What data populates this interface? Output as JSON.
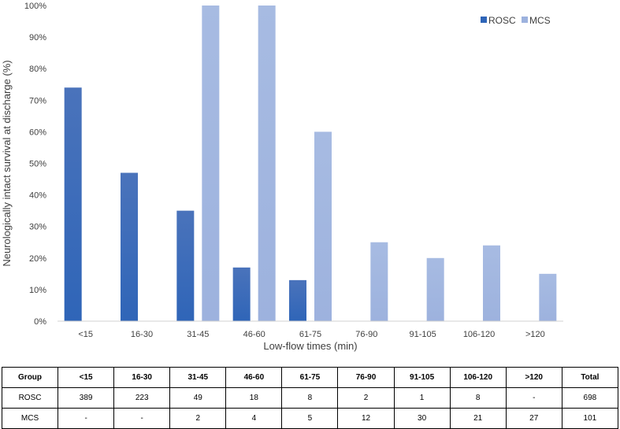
{
  "chart_data": {
    "type": "bar",
    "categories": [
      "<15",
      "16-30",
      "31-45",
      "46-60",
      "61-75",
      "76-90",
      "91-105",
      "106-120",
      ">120"
    ],
    "series": [
      {
        "name": "ROSC",
        "color": "#2f65b8",
        "values": [
          74,
          47,
          35,
          17,
          13,
          0,
          0,
          0,
          0
        ]
      },
      {
        "name": "MCS",
        "color": "#9db2de",
        "values": [
          0,
          0,
          100,
          100,
          60,
          25,
          20,
          24,
          15
        ]
      }
    ],
    "xlabel": "Low-flow times (min)",
    "ylabel": "Neurologically intact survival at discharge (%)",
    "ylim": [
      0,
      100
    ],
    "yticks": [
      "0%",
      "10%",
      "20%",
      "30%",
      "40%",
      "50%",
      "60%",
      "70%",
      "80%",
      "90%",
      "100%"
    ],
    "legend_position": "top-right",
    "grid": false
  },
  "table": {
    "header": [
      "Group",
      "<15",
      "16-30",
      "31-45",
      "46-60",
      "61-75",
      "76-90",
      "91-105",
      "106-120",
      ">120",
      "Total"
    ],
    "rows": [
      [
        "ROSC",
        "389",
        "223",
        "49",
        "18",
        "8",
        "2",
        "1",
        "8",
        "-",
        "698"
      ],
      [
        "MCS",
        "-",
        "-",
        "2",
        "4",
        "5",
        "12",
        "30",
        "21",
        "27",
        "101"
      ]
    ]
  }
}
